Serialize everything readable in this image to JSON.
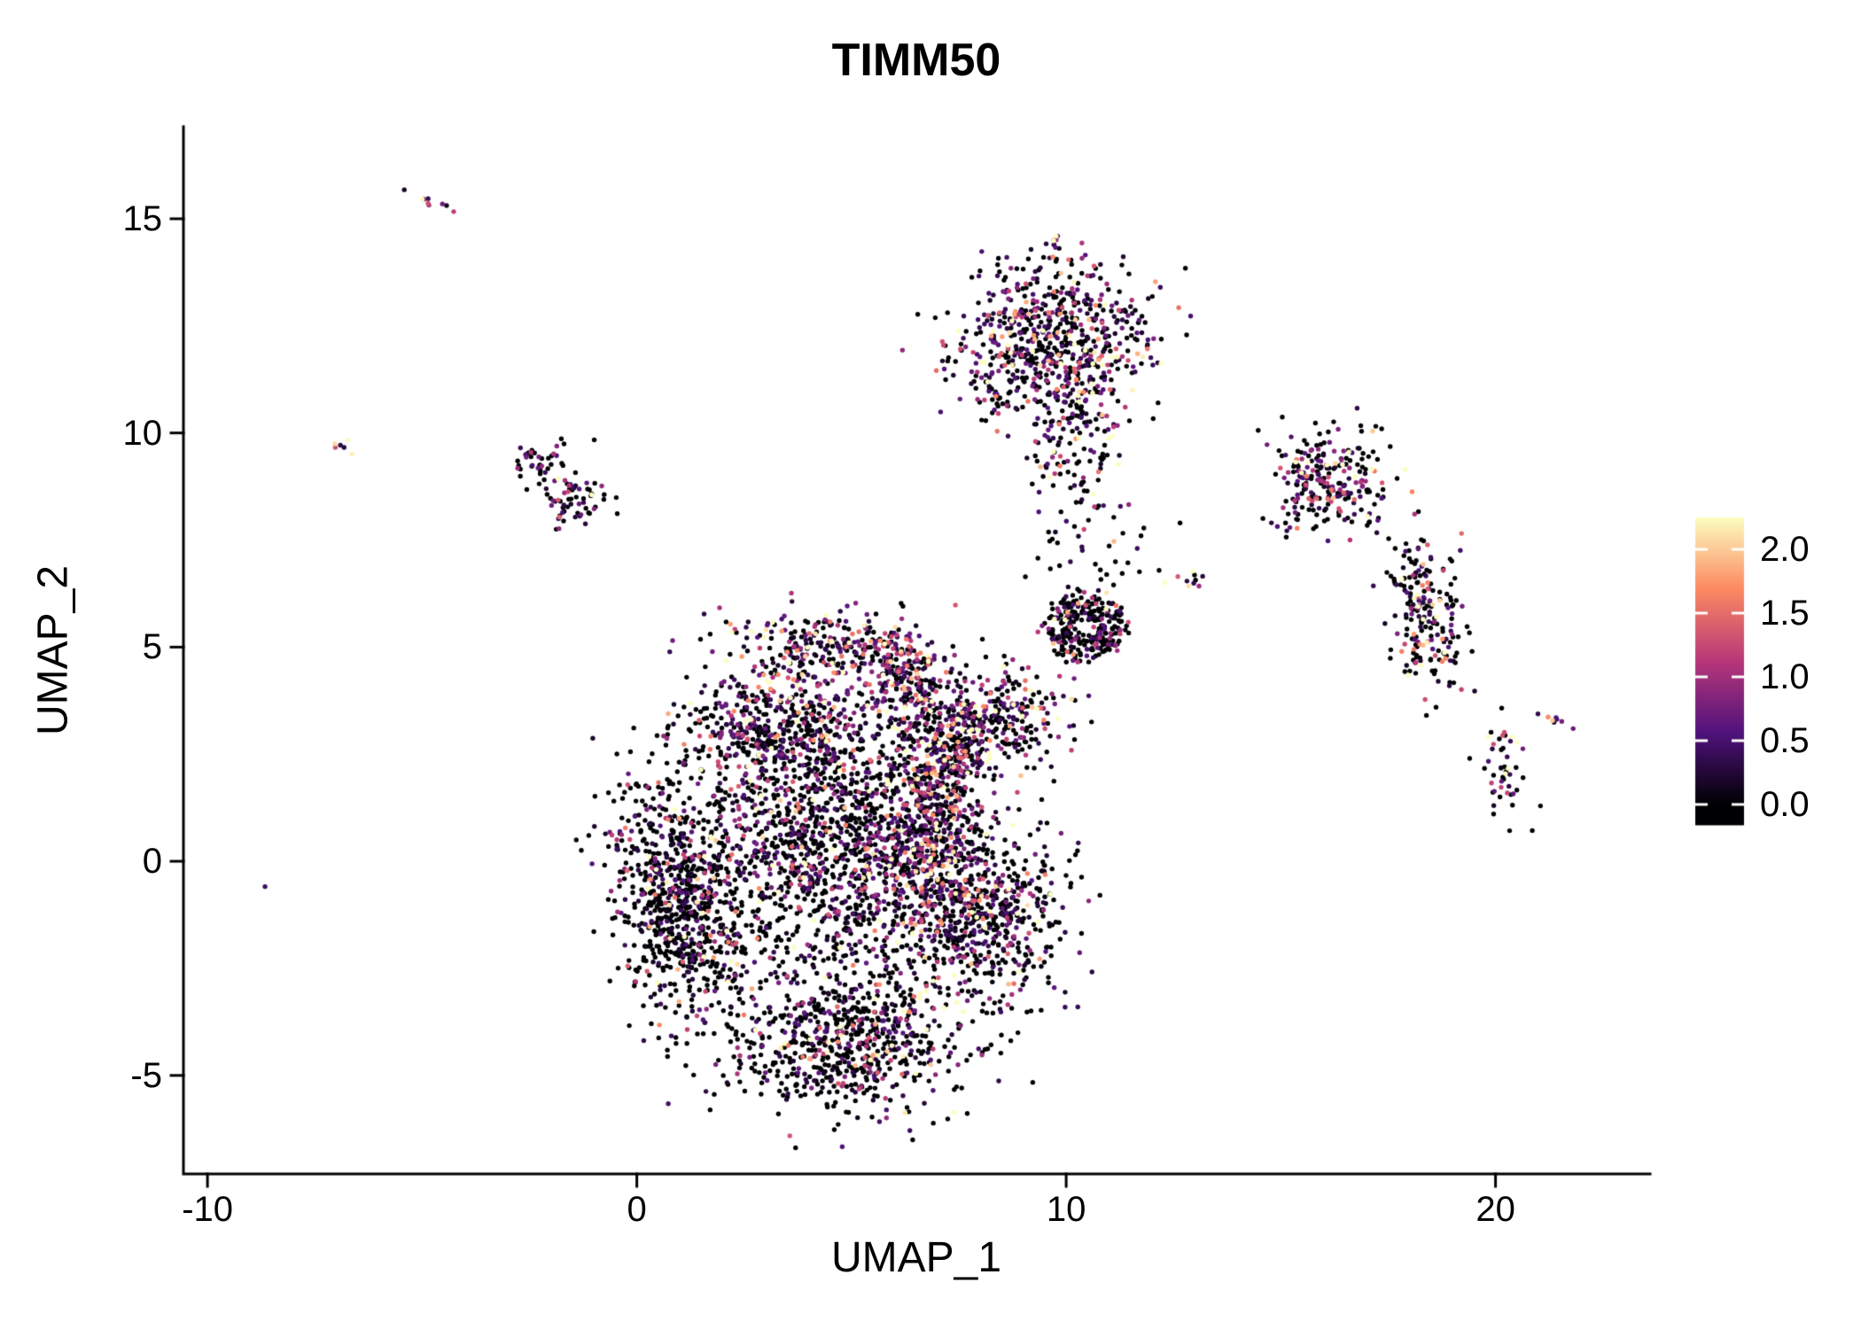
{
  "chart_data": {
    "type": "scatter",
    "title": "TIMM50",
    "xlabel": "UMAP_1",
    "ylabel": "UMAP_2",
    "xlim": [
      -10.56,
      23.6
    ],
    "ylim": [
      -7.3,
      17.15
    ],
    "xticks": [
      -10,
      0,
      10,
      20
    ],
    "yticks": [
      -5,
      0,
      5,
      10,
      15
    ],
    "grid": false,
    "legend_position": "right",
    "point_radius_px": 2.7,
    "seed": 42,
    "colorbar": {
      "ticks": [
        0.0,
        0.5,
        1.0,
        1.5,
        2.0
      ],
      "bar_range": [
        -0.16,
        2.25
      ],
      "expr_max": 2.25,
      "colormap_name": "magma",
      "colormap_stops": [
        [
          0,
          "#000004"
        ],
        [
          0.25,
          "#51127c"
        ],
        [
          0.5,
          "#b73779"
        ],
        [
          0.75,
          "#fc8961"
        ],
        [
          1,
          "#fcfdbf"
        ]
      ]
    },
    "clusters": [
      {
        "cx": -4.75,
        "cy": 15.4,
        "sx": 0.22,
        "sy": 0.06,
        "rot": -20,
        "n": 9,
        "zero": 0.1,
        "scale": 1.0
      },
      {
        "cx": -6.85,
        "cy": 9.7,
        "sx": 0.13,
        "sy": 0.08,
        "rot": -20,
        "n": 6,
        "zero": 0.15,
        "scale": 0.9
      },
      {
        "cx": -2.3,
        "cy": 9.3,
        "sx": 0.33,
        "sy": 0.28,
        "rot": 0,
        "n": 45,
        "zero": 0.55,
        "scale": 0.7
      },
      {
        "cx": -1.4,
        "cy": 8.4,
        "sx": 0.42,
        "sy": 0.3,
        "rot": 15,
        "n": 60,
        "zero": 0.55,
        "scale": 0.7
      },
      {
        "cx": 9.6,
        "cy": 12.2,
        "sx": 1.15,
        "sy": 0.95,
        "rot": 0,
        "n": 640,
        "zero": 0.48,
        "scale": 0.75
      },
      {
        "cx": 10.25,
        "cy": 9.9,
        "sx": 0.55,
        "sy": 0.95,
        "rot": 0,
        "n": 150,
        "zero": 0.52,
        "scale": 0.7
      },
      {
        "cx": 9.75,
        "cy": 14.3,
        "sx": 0.09,
        "sy": 0.28,
        "rot": 8,
        "n": 10,
        "zero": 0.1,
        "scale": 1.2
      },
      {
        "cx": 7.95,
        "cy": 11.4,
        "sx": 0.22,
        "sy": 0.55,
        "rot": 25,
        "n": 28,
        "zero": 0.25,
        "scale": 1.0
      },
      {
        "cx": -8.7,
        "cy": -0.45,
        "sx": 0.04,
        "sy": 0.04,
        "rot": 0,
        "n": 1,
        "zero": 0,
        "scale": 1.1
      },
      {
        "cx": 16.2,
        "cy": 8.9,
        "sx": 0.72,
        "sy": 0.55,
        "rot": -20,
        "n": 230,
        "zero": 0.48,
        "scale": 0.8
      },
      {
        "cx": 15.3,
        "cy": 7.95,
        "sx": 0.28,
        "sy": 0.22,
        "rot": 0,
        "n": 16,
        "zero": 0.5,
        "scale": 0.7
      },
      {
        "cx": 18.4,
        "cy": 5.7,
        "sx": 0.42,
        "sy": 0.85,
        "rot": 12,
        "n": 210,
        "zero": 0.48,
        "scale": 0.8
      },
      {
        "cx": 20.25,
        "cy": 2.1,
        "sx": 0.28,
        "sy": 0.6,
        "rot": 0,
        "n": 48,
        "zero": 0.5,
        "scale": 0.8
      },
      {
        "cx": 21.4,
        "cy": 3.25,
        "sx": 0.18,
        "sy": 0.06,
        "rot": -25,
        "n": 8,
        "zero": 0.1,
        "scale": 1.0
      },
      {
        "cx": 12.7,
        "cy": 6.6,
        "sx": 0.28,
        "sy": 0.1,
        "rot": -10,
        "n": 10,
        "zero": 0.25,
        "scale": 1.2
      },
      {
        "cx": 10.6,
        "cy": 7.3,
        "sx": 0.9,
        "sy": 0.7,
        "rot": 0,
        "n": 40,
        "zero": 0.7,
        "scale": 0.6
      },
      {
        "cx": 10.45,
        "cy": 5.45,
        "sx": 1.0,
        "sy": 0.85,
        "rot": 0,
        "n": 280,
        "zero": 0.72,
        "scale": 0.55,
        "ring": [
          0.3,
          0.95
        ]
      },
      {
        "cx": 8.65,
        "cy": 3.4,
        "sx": 0.72,
        "sy": 0.58,
        "rot": 0,
        "n": 210,
        "zero": 0.5,
        "scale": 0.9
      },
      {
        "cx": 4.6,
        "cy": 5.0,
        "sx": 1.15,
        "sy": 0.42,
        "rot": -5,
        "n": 280,
        "zero": 0.38,
        "scale": 0.9
      },
      {
        "cx": 6.3,
        "cy": 4.2,
        "sx": 0.5,
        "sy": 0.5,
        "rot": 0,
        "n": 150,
        "zero": 0.42,
        "scale": 0.85
      },
      {
        "cx": 3.4,
        "cy": 3.1,
        "sx": 1.2,
        "sy": 0.75,
        "rot": 0,
        "n": 520,
        "zero": 0.52,
        "scale": 0.75
      },
      {
        "cx": 0.9,
        "cy": -0.9,
        "sx": 0.7,
        "sy": 1.45,
        "rot": 8,
        "n": 730,
        "zero": 0.7,
        "scale": 0.7
      },
      {
        "cx": 4.4,
        "cy": 0.2,
        "sx": 1.7,
        "sy": 1.55,
        "rot": 0,
        "n": 1450,
        "zero": 0.62,
        "scale": 0.7
      },
      {
        "cx": 6.9,
        "cy": 0.9,
        "sx": 0.55,
        "sy": 1.7,
        "rot": 0,
        "n": 620,
        "zero": 0.42,
        "scale": 0.85
      },
      {
        "cx": 4.9,
        "cy": -4.2,
        "sx": 1.3,
        "sy": 0.8,
        "rot": 0,
        "n": 680,
        "zero": 0.66,
        "scale": 0.7
      },
      {
        "cx": 8.2,
        "cy": -1.3,
        "sx": 0.9,
        "sy": 1.0,
        "rot": 0,
        "n": 500,
        "zero": 0.6,
        "scale": 0.75
      },
      {
        "cx": 7.6,
        "cy": 2.7,
        "sx": 0.5,
        "sy": 0.6,
        "rot": 0,
        "n": 190,
        "zero": 0.45,
        "scale": 0.85
      }
    ]
  },
  "colors": {
    "axis": "#000000",
    "text": "#000000",
    "background": "#ffffff",
    "colorbar_tick": "#ffffff"
  }
}
